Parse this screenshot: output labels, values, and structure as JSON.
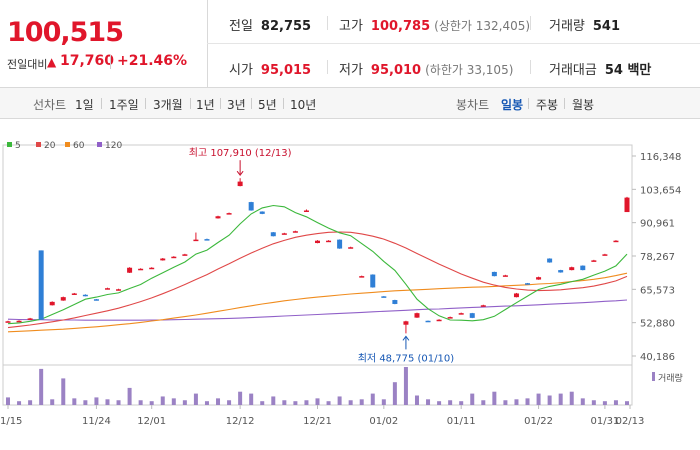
{
  "header": {
    "price": "100,515",
    "change_label": "전일대비",
    "change_arrow": "▲",
    "change_value": "17,760",
    "change_rate": "+21.46%",
    "prev_close_label": "전일",
    "prev_close": "82,755",
    "high_label": "고가",
    "high": "100,785",
    "upper_limit": "(상한가 132,405)",
    "volume_label": "거래량",
    "volume": "541",
    "open_label": "시가",
    "open": "95,015",
    "low_label": "저가",
    "low": "95,010",
    "lower_limit": "(하한가 33,105)",
    "amount_label": "거래대금",
    "amount": "54 백만"
  },
  "toolbar": {
    "line_label": "선차트",
    "line_periods": [
      "1일",
      "1주일",
      "3개월",
      "1년",
      "3년",
      "5년",
      "10년"
    ],
    "candle_label": "봉차트",
    "candle_periods": [
      "일봉",
      "주봉",
      "월봉"
    ],
    "active_candle": "일봉"
  },
  "chart_data": {
    "type": "candlestick",
    "legend": [
      {
        "name": "5",
        "color": "#3cb83c"
      },
      {
        "name": "20",
        "color": "#e04848"
      },
      {
        "name": "60",
        "color": "#f08c1e"
      },
      {
        "name": "120",
        "color": "#9060c8"
      }
    ],
    "y_ticks": [
      "116,348",
      "103,654",
      "90,961",
      "78,267",
      "65,573",
      "52,880",
      "40,186"
    ],
    "ylim": [
      40186,
      116348
    ],
    "x_ticks": [
      "11/15",
      "11/24",
      "12/01",
      "12/12",
      "12/21",
      "01/02",
      "01/11",
      "01/22",
      "01/31",
      "02/13"
    ],
    "annotation_high": "최고 107,910 (12/13)",
    "annotation_low": "최저 48,775 (01/10)",
    "volume_legend": "거래량",
    "candles": [
      {
        "o": 53400,
        "c": 53400,
        "h": 53600,
        "l": 53200,
        "v": 8
      },
      {
        "o": 53600,
        "c": 53600,
        "h": 53800,
        "l": 53400,
        "v": 4
      },
      {
        "o": 54000,
        "c": 54500,
        "h": 54700,
        "l": 53900,
        "v": 5
      },
      {
        "o": 80400,
        "c": 54000,
        "h": 80400,
        "l": 54000,
        "v": 38
      },
      {
        "o": 59500,
        "c": 60800,
        "h": 61000,
        "l": 59400,
        "v": 6
      },
      {
        "o": 61300,
        "c": 62600,
        "h": 62800,
        "l": 61200,
        "v": 28
      },
      {
        "o": 63600,
        "c": 64000,
        "h": 64200,
        "l": 63500,
        "v": 7
      },
      {
        "o": 63500,
        "c": 63000,
        "h": 63700,
        "l": 62900,
        "v": 5
      },
      {
        "o": 61800,
        "c": 61500,
        "h": 61900,
        "l": 61300,
        "v": 8
      },
      {
        "o": 65600,
        "c": 66000,
        "h": 66200,
        "l": 65500,
        "v": 6
      },
      {
        "o": 65200,
        "c": 65600,
        "h": 65800,
        "l": 65100,
        "v": 5
      },
      {
        "o": 71900,
        "c": 73800,
        "h": 74000,
        "l": 71800,
        "v": 18
      },
      {
        "o": 73400,
        "c": 73400,
        "h": 73600,
        "l": 73200,
        "v": 5
      },
      {
        "o": 73800,
        "c": 73800,
        "h": 74000,
        "l": 73600,
        "v": 4
      },
      {
        "o": 76600,
        "c": 77300,
        "h": 77500,
        "l": 76500,
        "v": 9
      },
      {
        "o": 78000,
        "c": 78000,
        "h": 78200,
        "l": 77800,
        "v": 7
      },
      {
        "o": 78900,
        "c": 78900,
        "h": 79100,
        "l": 78700,
        "v": 5
      },
      {
        "o": 84100,
        "c": 84500,
        "h": 87200,
        "l": 84000,
        "v": 12
      },
      {
        "o": 84700,
        "c": 84500,
        "h": 84900,
        "l": 84300,
        "v": 4
      },
      {
        "o": 92600,
        "c": 93400,
        "h": 93600,
        "l": 92500,
        "v": 7
      },
      {
        "o": 94200,
        "c": 94600,
        "h": 94800,
        "l": 94100,
        "v": 5
      },
      {
        "o": 104900,
        "c": 106600,
        "h": 107900,
        "l": 104800,
        "v": 14
      },
      {
        "o": 98800,
        "c": 95600,
        "h": 98900,
        "l": 95500,
        "v": 12
      },
      {
        "o": 95200,
        "c": 94300,
        "h": 95300,
        "l": 94200,
        "v": 4
      },
      {
        "o": 87300,
        "c": 85800,
        "h": 87400,
        "l": 85700,
        "v": 9
      },
      {
        "o": 86900,
        "c": 86900,
        "h": 87100,
        "l": 86700,
        "v": 5
      },
      {
        "o": 87700,
        "c": 87700,
        "h": 87900,
        "l": 87500,
        "v": 4
      },
      {
        "o": 95600,
        "c": 95600,
        "h": 96000,
        "l": 95300,
        "v": 5
      },
      {
        "o": 83200,
        "c": 84100,
        "h": 84300,
        "l": 83100,
        "v": 7
      },
      {
        "o": 84100,
        "c": 84100,
        "h": 84300,
        "l": 83900,
        "v": 4
      },
      {
        "o": 84500,
        "c": 81100,
        "h": 84600,
        "l": 81000,
        "v": 9
      },
      {
        "o": 81600,
        "c": 81600,
        "h": 81800,
        "l": 81400,
        "v": 5
      },
      {
        "o": 70600,
        "c": 70600,
        "h": 70800,
        "l": 70400,
        "v": 6
      },
      {
        "o": 71200,
        "c": 66300,
        "h": 71300,
        "l": 66200,
        "v": 12
      },
      {
        "o": 62900,
        "c": 62600,
        "h": 63000,
        "l": 62500,
        "v": 6
      },
      {
        "o": 61500,
        "c": 60000,
        "h": 61600,
        "l": 59900,
        "v": 24
      },
      {
        "o": 52100,
        "c": 53400,
        "h": 53600,
        "l": 48800,
        "v": 40
      },
      {
        "o": 54800,
        "c": 56500,
        "h": 56700,
        "l": 54700,
        "v": 10
      },
      {
        "o": 53600,
        "c": 53400,
        "h": 53700,
        "l": 53300,
        "v": 6
      },
      {
        "o": 54000,
        "c": 54000,
        "h": 54200,
        "l": 53800,
        "v": 4
      },
      {
        "o": 55000,
        "c": 55000,
        "h": 55200,
        "l": 54800,
        "v": 5
      },
      {
        "o": 56100,
        "c": 56500,
        "h": 56700,
        "l": 56000,
        "v": 4
      },
      {
        "o": 56500,
        "c": 54700,
        "h": 56600,
        "l": 54600,
        "v": 12
      },
      {
        "o": 59500,
        "c": 59500,
        "h": 59700,
        "l": 59300,
        "v": 5
      },
      {
        "o": 72200,
        "c": 70600,
        "h": 72300,
        "l": 70500,
        "v": 14
      },
      {
        "o": 70900,
        "c": 70900,
        "h": 71100,
        "l": 70700,
        "v": 5
      },
      {
        "o": 62600,
        "c": 64000,
        "h": 64200,
        "l": 62500,
        "v": 6
      },
      {
        "o": 67900,
        "c": 67500,
        "h": 68000,
        "l": 67400,
        "v": 7
      },
      {
        "o": 69300,
        "c": 70200,
        "h": 70400,
        "l": 69200,
        "v": 12
      },
      {
        "o": 77300,
        "c": 75800,
        "h": 77400,
        "l": 75700,
        "v": 10
      },
      {
        "o": 72900,
        "c": 72000,
        "h": 73000,
        "l": 71900,
        "v": 12
      },
      {
        "o": 72900,
        "c": 74000,
        "h": 74200,
        "l": 72800,
        "v": 14
      },
      {
        "o": 74600,
        "c": 72900,
        "h": 74700,
        "l": 72800,
        "v": 7
      },
      {
        "o": 76300,
        "c": 76600,
        "h": 76800,
        "l": 76200,
        "v": 5
      },
      {
        "o": 78900,
        "c": 78900,
        "h": 79100,
        "l": 78700,
        "v": 4
      },
      {
        "o": 84100,
        "c": 84100,
        "h": 84300,
        "l": 83900,
        "v": 5
      },
      {
        "o": 95000,
        "c": 100500,
        "h": 100800,
        "l": 95000,
        "v": 4
      }
    ],
    "ma5": [
      52500,
      52800,
      53400,
      54200,
      56000,
      57800,
      59800,
      61800,
      62600,
      63600,
      64200,
      65900,
      67400,
      69800,
      71900,
      74000,
      76000,
      79000,
      80500,
      83400,
      86200,
      90500,
      94300,
      96600,
      97500,
      97000,
      94800,
      93200,
      91000,
      88900,
      87100,
      86000,
      83000,
      80000,
      76200,
      72800,
      67500,
      61800,
      58200,
      55500,
      53900,
      53800,
      53600,
      54000,
      55300,
      57900,
      60500,
      63000,
      65500,
      66700,
      67500,
      68500,
      69400,
      71000,
      72500,
      74500,
      79000
    ],
    "ma20": [
      51000,
      51500,
      52000,
      52600,
      53200,
      53900,
      54700,
      55600,
      56500,
      57400,
      58400,
      59600,
      60900,
      62300,
      63900,
      65600,
      67400,
      69300,
      71200,
      73300,
      75300,
      77400,
      79400,
      81200,
      82900,
      84200,
      85400,
      86200,
      86800,
      87300,
      87400,
      87300,
      86700,
      85800,
      84700,
      83100,
      81300,
      79200,
      77200,
      75200,
      73300,
      71400,
      69800,
      68300,
      67200,
      66300,
      65700,
      65300,
      65100,
      65200,
      65400,
      65800,
      66200,
      66800,
      67700,
      68800,
      70500
    ],
    "ma60": [
      49400,
      49600,
      49800,
      50000,
      50200,
      50400,
      50700,
      51000,
      51300,
      51700,
      52100,
      52500,
      53000,
      53500,
      54000,
      54600,
      55200,
      55800,
      56500,
      57200,
      57900,
      58600,
      59300,
      60000,
      60600,
      61200,
      61700,
      62200,
      62600,
      63000,
      63400,
      63800,
      64100,
      64400,
      64700,
      65000,
      65200,
      65400,
      65600,
      65800,
      66000,
      66200,
      66400,
      66500,
      66700,
      66900,
      67100,
      67300,
      67600,
      67800,
      68100,
      68500,
      68900,
      69400,
      70000,
      70800,
      71700
    ],
    "ma120": [
      54200,
      54100,
      54000,
      54000,
      53900,
      53900,
      53900,
      53800,
      53800,
      53800,
      53800,
      53800,
      53800,
      53900,
      53900,
      54000,
      54100,
      54200,
      54300,
      54400,
      54500,
      54600,
      54800,
      55000,
      55200,
      55400,
      55600,
      55800,
      56000,
      56200,
      56400,
      56600,
      56800,
      57000,
      57200,
      57400,
      57600,
      57800,
      58000,
      58100,
      58300,
      58500,
      58700,
      58800,
      59000,
      59200,
      59300,
      59500,
      59700,
      59900,
      60100,
      60300,
      60500,
      60700,
      61000,
      61200,
      61500
    ]
  }
}
